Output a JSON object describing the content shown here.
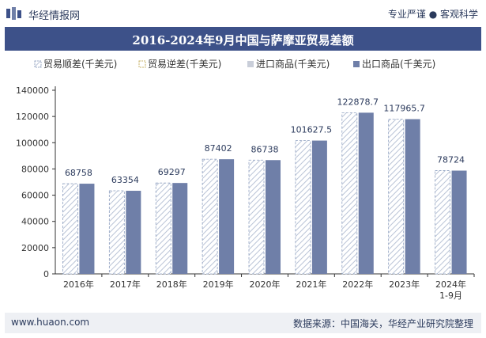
{
  "header": {
    "brand": "华经情报网",
    "tagline": "专业严谨 ● 客观科学"
  },
  "footer": {
    "website": "www.huaon.com",
    "source": "数据来源：中国海关，华经产业研究院整理"
  },
  "colors": {
    "title_bg": "#3d5189",
    "export": "#6f7fa8",
    "import": "#c9ced9",
    "hatch": "#b9c3d6"
  },
  "chart_data": {
    "type": "bar",
    "title": "2016-2024年9月中国与萨摩亚贸易差额",
    "categories": [
      "2016年",
      "2017年",
      "2018年",
      "2019年",
      "2020年",
      "2021年",
      "2022年",
      "2023年",
      "2024年\n1-9月"
    ],
    "series": [
      {
        "name": "贸易顺差(千美元)",
        "values": [
          68758,
          63354,
          69297,
          87402,
          86738,
          101627.5,
          122878.7,
          117965.7,
          78724
        ]
      },
      {
        "name": "贸易逆差(千美元)",
        "values": [
          0,
          0,
          0,
          0,
          0,
          0,
          0,
          0,
          0
        ]
      },
      {
        "name": "进口商品(千美元)",
        "values": [
          0,
          0,
          0,
          0,
          0,
          0,
          0,
          0,
          0
        ]
      },
      {
        "name": "出口商品(千美元)",
        "values": [
          68758,
          63354,
          69297,
          87402,
          86738,
          101627.5,
          122878.7,
          117965.7,
          78724
        ]
      }
    ],
    "data_labels": [
      "68758",
      "63354",
      "69297",
      "87402",
      "86738",
      "101627.5",
      "122878.7",
      "117965.7",
      "78724"
    ],
    "yticks": [
      "0",
      "20000",
      "40000",
      "60000",
      "80000",
      "100000",
      "120000",
      "140000"
    ],
    "ylim": [
      0,
      140000
    ],
    "legend_position": "top",
    "grid": false,
    "xlabel": "",
    "ylabel": ""
  }
}
